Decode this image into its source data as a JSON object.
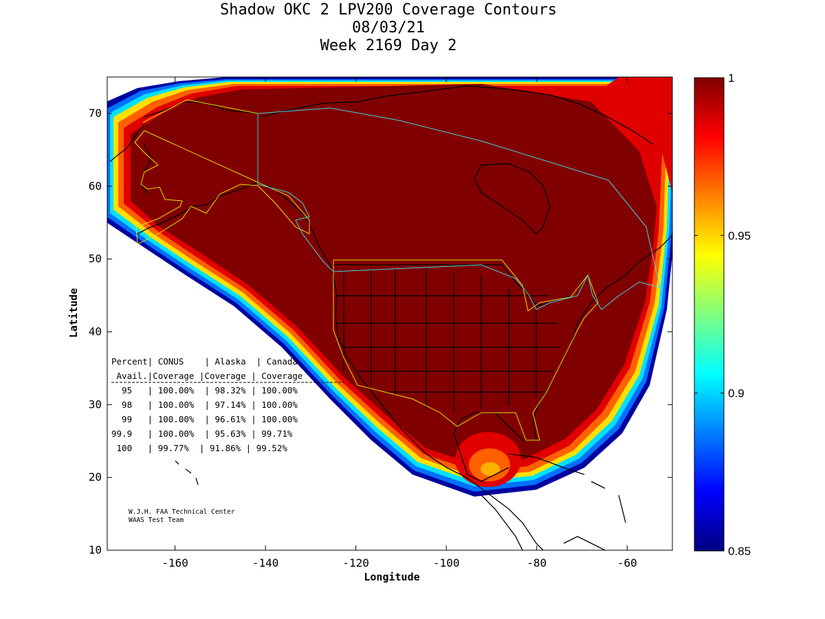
{
  "title": {
    "line1": "Shadow OKC 2 LPV200 Coverage Contours",
    "line2": "08/03/21",
    "line3": "Week 2169 Day 2"
  },
  "axes": {
    "xlabel": "Longitude",
    "ylabel": "Latitude",
    "xlim": [
      -175,
      -50
    ],
    "ylim": [
      10,
      75
    ],
    "xticks": [
      -160,
      -140,
      -120,
      -100,
      -80,
      -60
    ],
    "yticks": [
      10,
      20,
      30,
      40,
      50,
      60,
      70
    ],
    "xtick_labels": [
      "-160",
      "-140",
      "-120",
      "-100",
      "-80",
      "-60"
    ],
    "ytick_labels": [
      "10",
      "20",
      "30",
      "40",
      "50",
      "60",
      "70"
    ]
  },
  "colorbar": {
    "range": [
      0.85,
      1
    ],
    "ticks": [
      0.85,
      0.9,
      0.95,
      1
    ],
    "tick_labels": [
      "0.85",
      "0.9",
      "0.95",
      "1"
    ],
    "colormap": "jet"
  },
  "table": {
    "header1": "Percent| CONUS    | Alaska  | Canada",
    "header2": " Avail.|Coverage |Coverage | Coverage",
    "rows": [
      "  95   | 100.00%  | 98.32% | 100.00%",
      "  98   | 100.00%  | 97.14% | 100.00%",
      "  99   | 100.00%  | 96.61% | 100.00%",
      "99.9   | 100.00%  | 95.63% | 99.71%",
      " 100   | 99.77%  | 91.86% | 99.52%"
    ]
  },
  "credit": {
    "line1": "W.J.H. FAA Technical Center",
    "line2": "WAAS Test Team"
  },
  "colors": {
    "coverage_full": "#800000",
    "frame": "#000000",
    "border_yellow": "#e8e000",
    "border_cyan": "#40d8e0"
  }
}
